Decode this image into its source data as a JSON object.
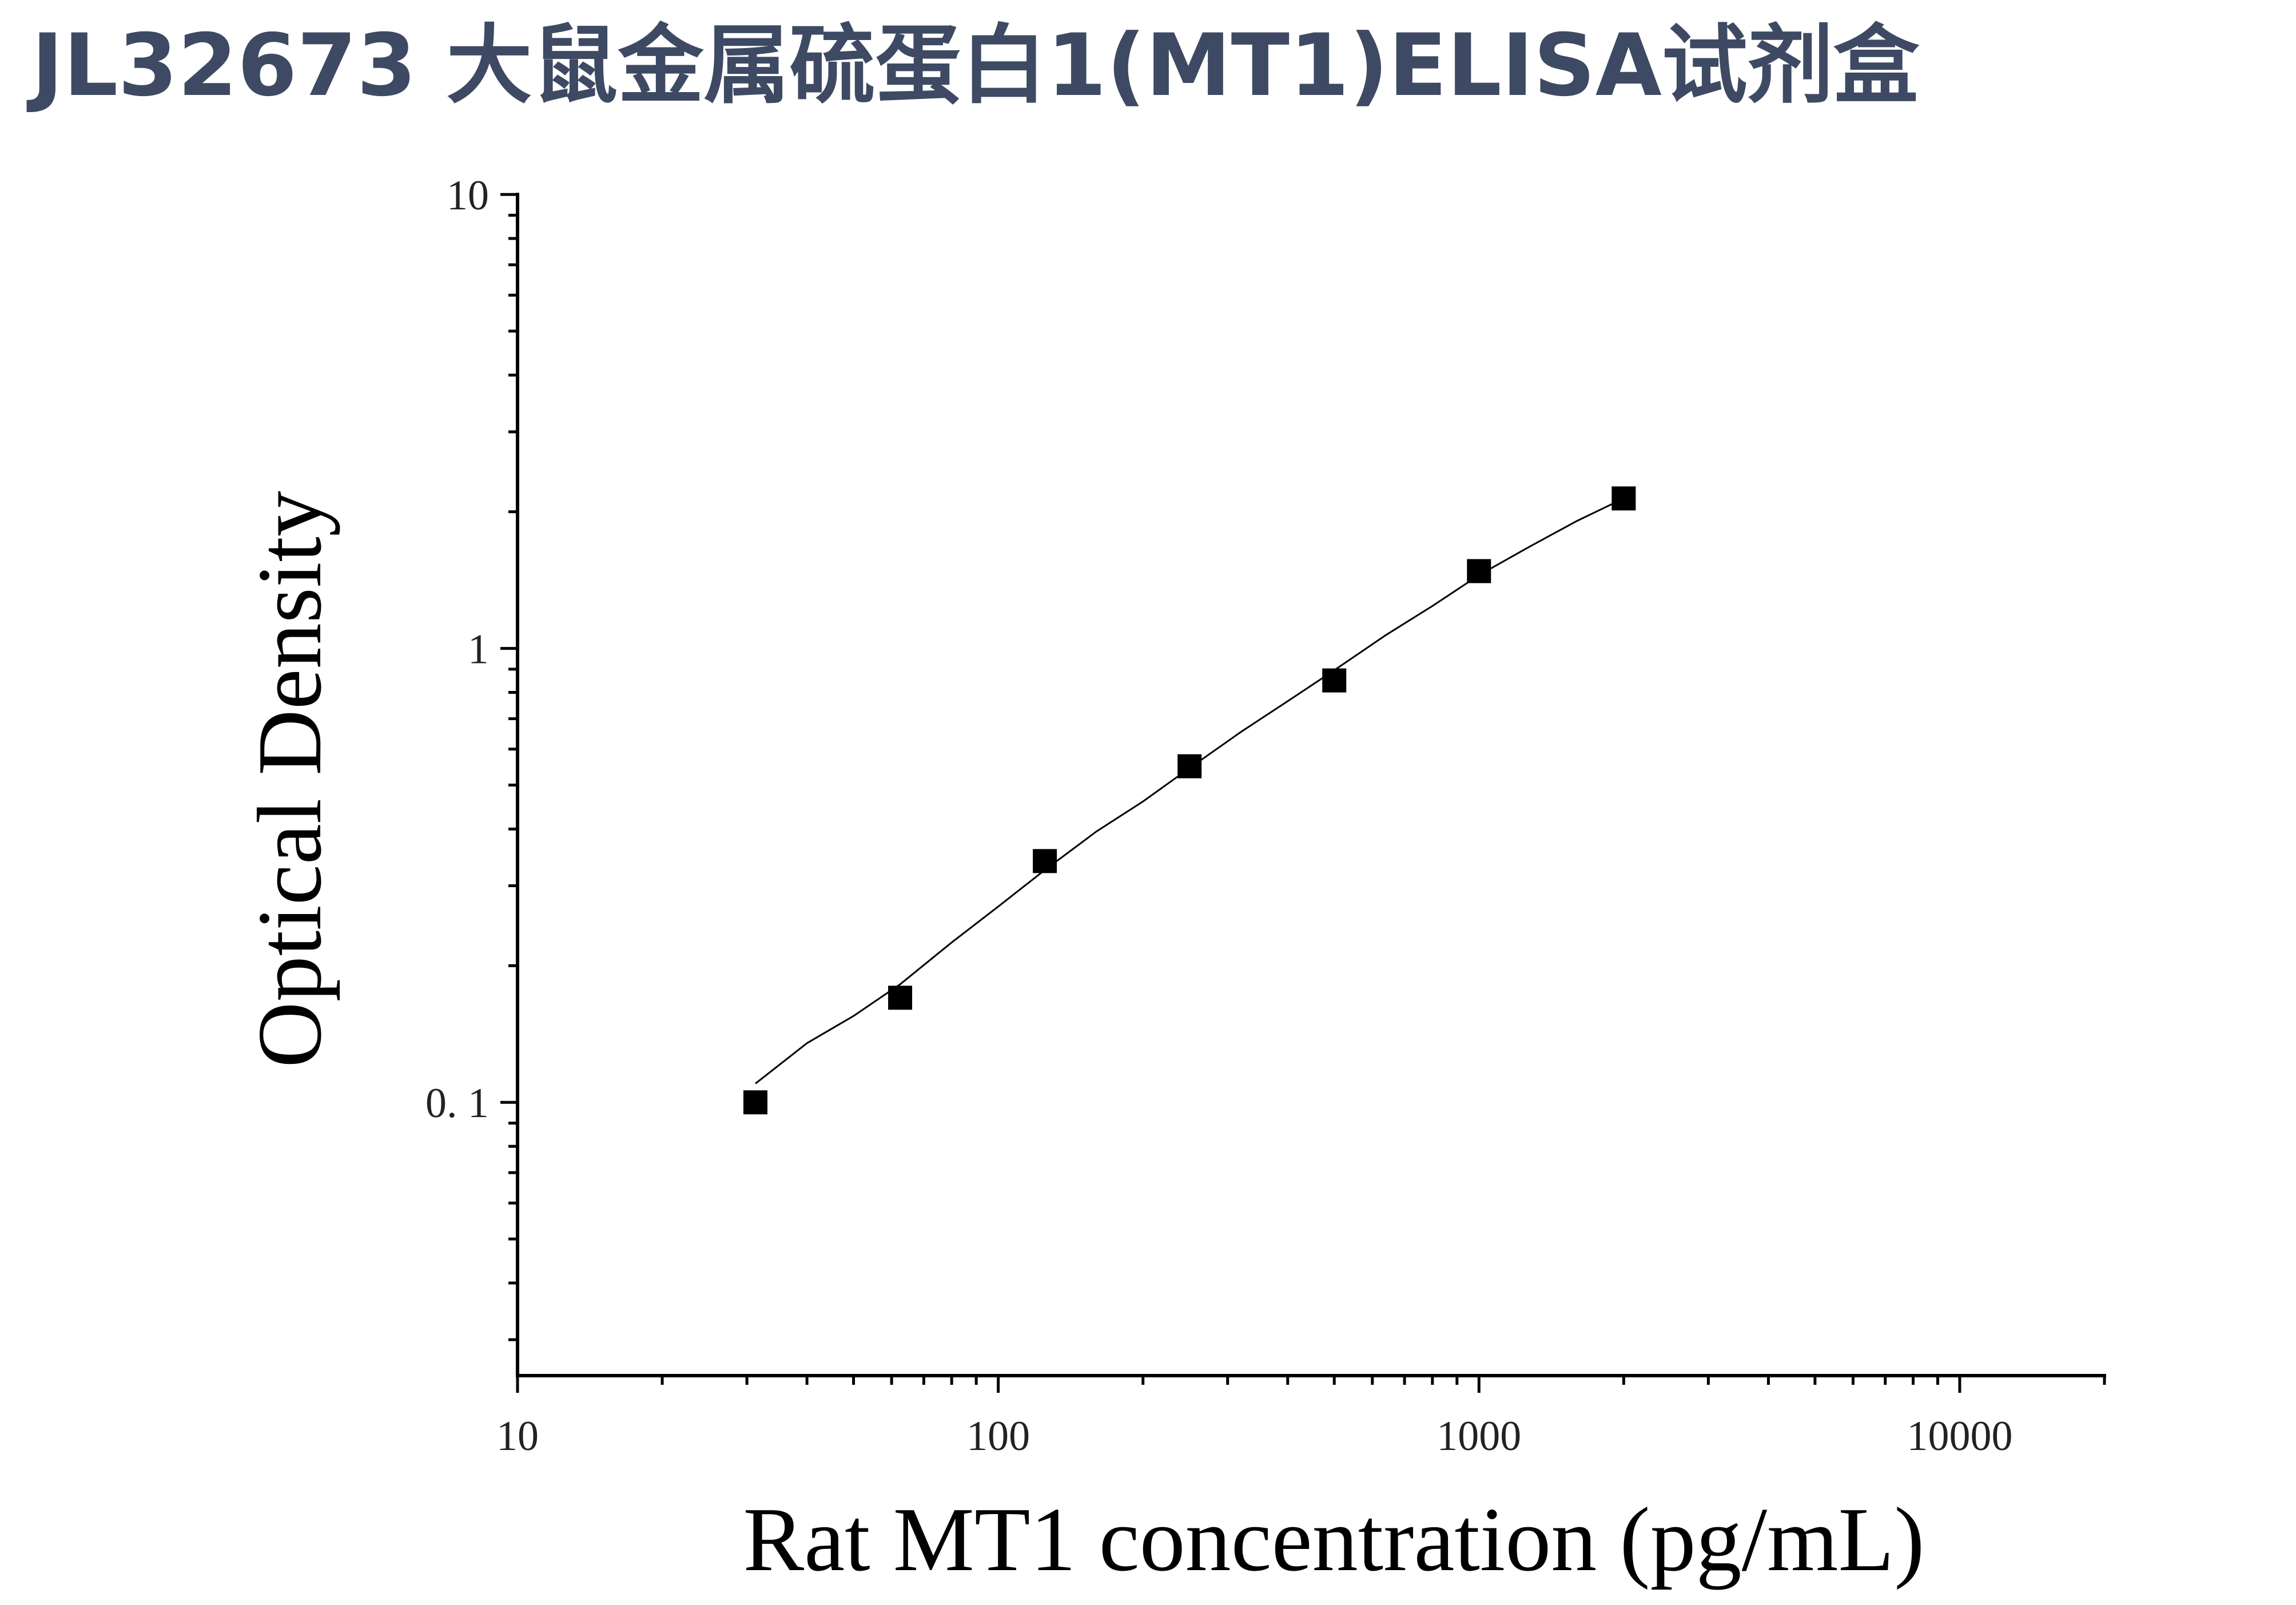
{
  "header": {
    "title": "JL32673 大鼠金属硫蛋白1(MT1)ELISA试剂盒"
  },
  "chart_data": {
    "type": "scatter",
    "xlabel": "Rat MT1 concentration (pg/mL)",
    "ylabel": "Optical Density",
    "xscale": "log",
    "yscale": "log",
    "xlim": [
      10,
      20000
    ],
    "ylim": [
      0.025,
      10
    ],
    "x_ticks": [
      {
        "value": 10,
        "label": "10"
      },
      {
        "value": 100,
        "label": "100"
      },
      {
        "value": 1000,
        "label": "1000"
      },
      {
        "value": 10000,
        "label": "10000"
      }
    ],
    "y_ticks": [
      {
        "value": 0.1,
        "label": "0. 1"
      },
      {
        "value": 1,
        "label": "1"
      },
      {
        "value": 10,
        "label": "10"
      }
    ],
    "grid": false,
    "legend": "none",
    "marker": "square",
    "marker_color": "#000000",
    "line_color": "#000000",
    "series": [
      {
        "x": [
          31.25,
          62.5,
          125,
          250,
          500,
          1000,
          2000
        ],
        "y": [
          0.1,
          0.17,
          0.34,
          0.55,
          0.85,
          1.48,
          2.14
        ]
      }
    ],
    "fit_curve": {
      "x": [
        31.25,
        40,
        50,
        62.5,
        80,
        100,
        125,
        160,
        200,
        250,
        320,
        400,
        500,
        640,
        800,
        1000,
        1280,
        1600,
        2000
      ],
      "y": [
        0.11,
        0.135,
        0.155,
        0.182,
        0.225,
        0.27,
        0.325,
        0.395,
        0.46,
        0.545,
        0.655,
        0.765,
        0.895,
        1.07,
        1.24,
        1.45,
        1.68,
        1.91,
        2.14
      ]
    }
  }
}
